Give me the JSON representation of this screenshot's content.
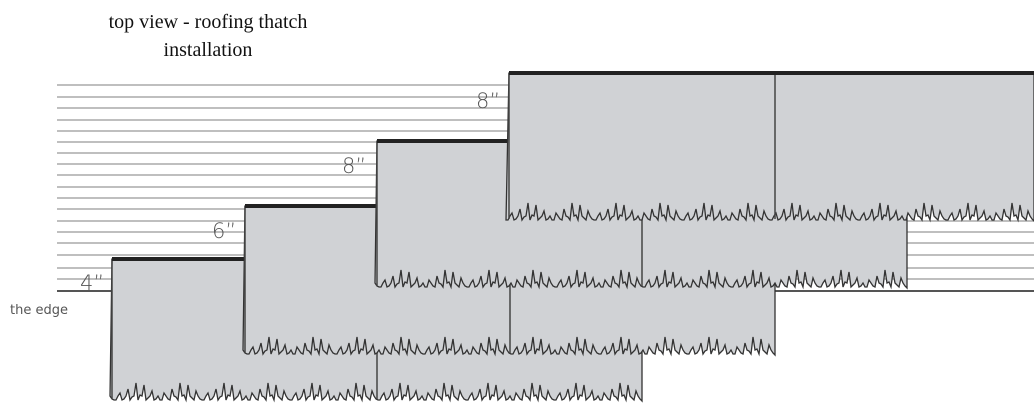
{
  "title": [
    "top view - roofing thatch",
    "installation"
  ],
  "course_labels": [
    "4”",
    "6”",
    "8”",
    "8”"
  ],
  "edge_label": "the edge"
}
